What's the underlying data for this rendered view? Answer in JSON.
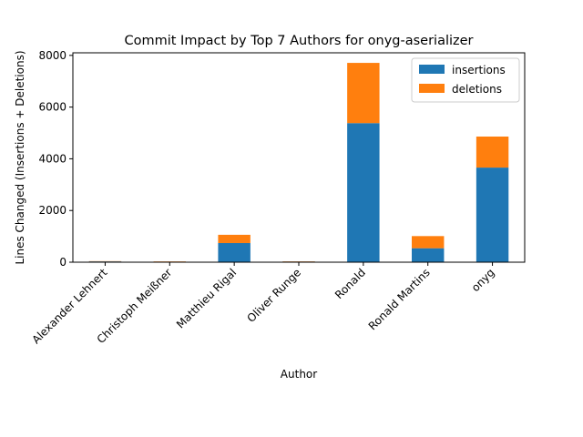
{
  "chart_data": {
    "type": "bar",
    "stacked": true,
    "title": "Commit Impact by Top 7 Authors for onyg-aserializer",
    "xlabel": "Author",
    "ylabel": "Lines Changed (Insertions + Deletions)",
    "categories": [
      "Alexander Lehnert",
      "Christoph Meißner",
      "Matthieu Rigal",
      "Oliver Runge",
      "Ronald",
      "Ronald Martins",
      "onyg"
    ],
    "series": [
      {
        "name": "insertions",
        "color": "#1f77b4",
        "values": [
          30,
          20,
          740,
          25,
          5380,
          540,
          3660
        ]
      },
      {
        "name": "deletions",
        "color": "#ff7f0e",
        "values": [
          10,
          10,
          320,
          10,
          2330,
          470,
          1200
        ]
      }
    ],
    "ylim": [
      0,
      8100
    ],
    "yticks": [
      0,
      2000,
      4000,
      6000,
      8000
    ],
    "grid": false,
    "legend_position": "top-right"
  }
}
